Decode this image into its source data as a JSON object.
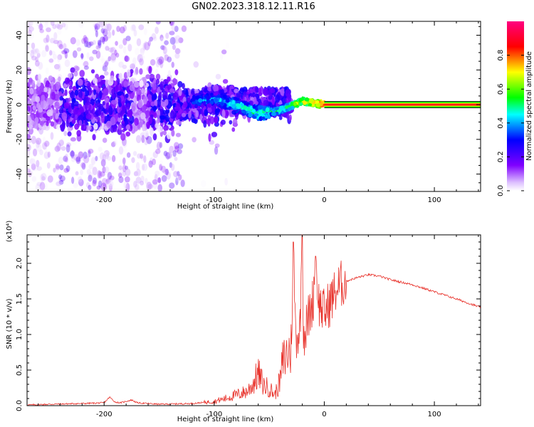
{
  "title": "GN02.2023.318.12.11.R16",
  "chart_data": [
    {
      "type": "heatmap",
      "title": "GN02.2023.318.12.11.R16",
      "xlabel": "Height of straight line (km)",
      "ylabel": "Frequency (Hz)",
      "xlim": [
        -270,
        142
      ],
      "ylim": [
        -50,
        48
      ],
      "xticks": [
        -200,
        -100,
        0,
        100
      ],
      "yticks": [
        -40,
        -20,
        0,
        20,
        40
      ],
      "grid": false,
      "description_of_signal": {
        "carrier_frequency_hz": 0,
        "carrier_amplitude_above_0km": 0.85,
        "ridge_points": [
          {
            "x": -120,
            "y": 2,
            "amp": 0.35
          },
          {
            "x": -100,
            "y": 3,
            "amp": 0.4
          },
          {
            "x": -80,
            "y": 0,
            "amp": 0.45
          },
          {
            "x": -60,
            "y": -5,
            "amp": 0.5
          },
          {
            "x": -45,
            "y": -4,
            "amp": 0.5
          },
          {
            "x": -35,
            "y": -2,
            "amp": 0.55
          },
          {
            "x": -20,
            "y": 2,
            "amp": 0.7
          },
          {
            "x": -10,
            "y": 1,
            "amp": 0.75
          },
          {
            "x": 0,
            "y": 0,
            "amp": 0.85
          }
        ]
      },
      "colorbar": {
        "label": "Normalized spectral amplitude",
        "range": [
          0.0,
          1.0
        ],
        "ticks": [
          "0.0",
          "0.2",
          "0.4",
          "0.6",
          "0.8"
        ],
        "colors": [
          "#ffffff",
          "#8000ff",
          "#0000ff",
          "#00ffff",
          "#00ff00",
          "#ffff00",
          "#ff0000",
          "#ff0080"
        ]
      }
    },
    {
      "type": "line",
      "xlabel": "Height of straight line (km)",
      "ylabel": "SNR (10 * v/v)",
      "ylabel_scale": "(x10⁴)",
      "xlim": [
        -270,
        142
      ],
      "ylim": [
        0.0,
        2.4
      ],
      "xticks": [
        -200,
        -100,
        0,
        100
      ],
      "yticks": [
        "0.0",
        "0.5",
        "1.0",
        "1.5",
        "2.0"
      ],
      "line_color": "#e8312a",
      "grid": false,
      "series": [
        {
          "x": [
            -270,
            -250,
            -220,
            -200,
            -195,
            -190,
            -185,
            -180,
            -175,
            -170,
            -150,
            -120,
            -100,
            -90,
            -80,
            -70,
            -65,
            -60,
            -55,
            -50,
            -45,
            -40,
            -38,
            -35,
            -30,
            -28,
            -26,
            -24,
            -22,
            -20,
            -19,
            -18,
            -15,
            -10,
            -8,
            -5,
            0,
            5,
            10,
            15,
            20,
            30,
            40,
            50,
            60,
            80,
            100,
            120,
            142
          ],
          "y": [
            0.01,
            0.02,
            0.03,
            0.04,
            0.12,
            0.05,
            0.04,
            0.06,
            0.08,
            0.04,
            0.02,
            0.03,
            0.06,
            0.1,
            0.15,
            0.2,
            0.3,
            0.45,
            0.28,
            0.25,
            0.15,
            0.35,
            0.6,
            0.7,
            0.8,
            2.3,
            1.0,
            1.0,
            1.1,
            2.45,
            1.15,
            1.0,
            1.2,
            1.5,
            2.1,
            1.45,
            1.3,
            1.45,
            1.6,
            1.7,
            1.75,
            1.8,
            1.84,
            1.82,
            1.77,
            1.7,
            1.6,
            1.5,
            1.38
          ]
        }
      ]
    }
  ]
}
